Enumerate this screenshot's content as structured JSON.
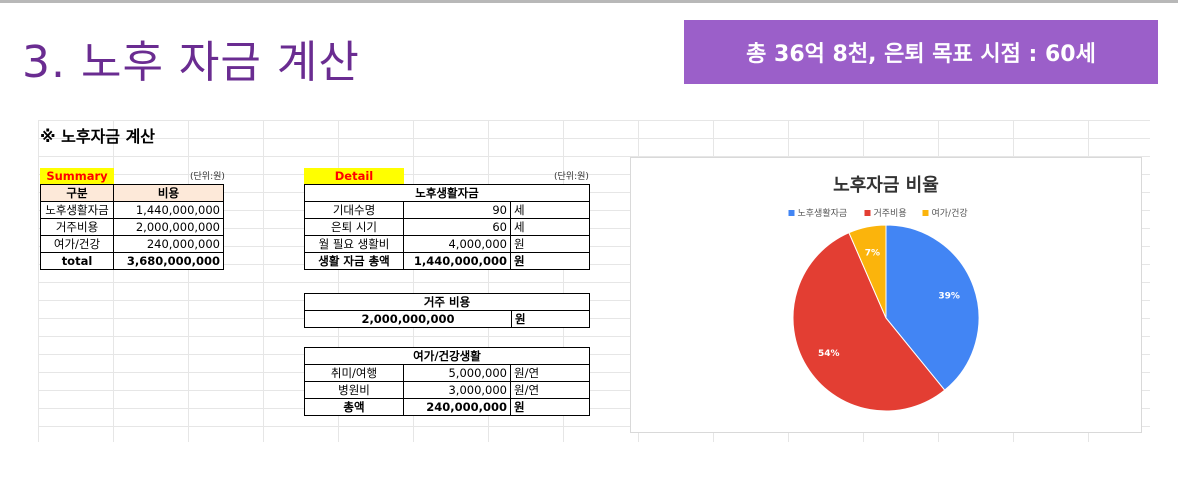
{
  "slide": {
    "title": "3. 노후 자금 계산",
    "badge": "총 36억 8천, 은퇴 목표 시점  : 60세"
  },
  "sheet": {
    "heading": "※ 노후자금 계산",
    "summary": {
      "label": "Summary",
      "unit": "(단위:원)",
      "headers": [
        "구분",
        "비용"
      ],
      "rows": [
        {
          "name": "노후생활자금",
          "value": "1,440,000,000"
        },
        {
          "name": "거주비용",
          "value": "2,000,000,000"
        },
        {
          "name": "여가/건강",
          "value": "240,000,000"
        },
        {
          "name": "total",
          "value": "3,680,000,000"
        }
      ]
    },
    "detail": {
      "label": "Detail",
      "unit": "(단위:원)",
      "living": {
        "header": "노후생활자금",
        "rows": [
          {
            "name": "기대수명",
            "value": "90",
            "unit": "세"
          },
          {
            "name": "은퇴 시기",
            "value": "60",
            "unit": "세"
          },
          {
            "name": "월 필요 생활비",
            "value": "4,000,000",
            "unit": "원"
          },
          {
            "name": "생활 자금 총액",
            "value": "1,440,000,000",
            "unit": "원"
          }
        ]
      },
      "housing": {
        "header": "거주 비용",
        "value": "2,000,000,000",
        "unit": "원"
      },
      "leisure": {
        "header": "여가/건강생활",
        "rows": [
          {
            "name": "취미/여행",
            "value": "5,000,000",
            "unit": "원/연"
          },
          {
            "name": "병원비",
            "value": "3,000,000",
            "unit": "원/연"
          },
          {
            "name": "총액",
            "value": "240,000,000",
            "unit": "원"
          }
        ]
      }
    }
  },
  "chart_data": {
    "type": "pie",
    "title": "노후자금 비율",
    "legend_position": "top",
    "categories": [
      "노후생활자금",
      "거주비용",
      "여가/건강"
    ],
    "values": [
      1440000000,
      2000000000,
      240000000
    ],
    "labels": [
      "39%",
      "54%",
      "7%"
    ],
    "colors": [
      "#4285f4",
      "#e33e33",
      "#fbb40c"
    ]
  }
}
